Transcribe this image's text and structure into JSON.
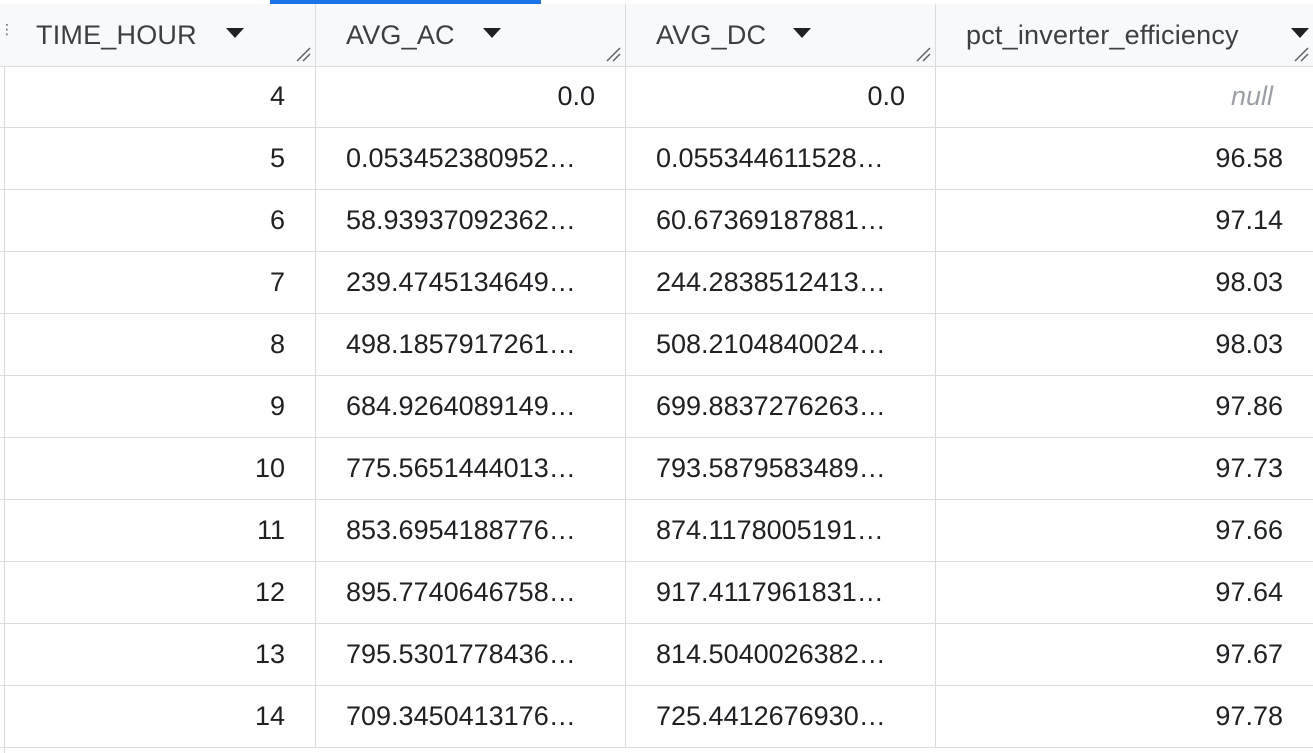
{
  "table": {
    "columns": [
      {
        "label": "TIME_HOUR",
        "sort_icon": "arrow-drop-down-icon"
      },
      {
        "label": "AVG_AC",
        "sort_icon": "arrow-drop-down-icon"
      },
      {
        "label": "AVG_DC",
        "sort_icon": "arrow-drop-down-icon"
      },
      {
        "label": "pct_inverter_efficiency",
        "sort_icon": "arrow-drop-down-icon"
      }
    ],
    "rows": [
      {
        "time_hour": "4",
        "avg_ac": "0.0",
        "avg_dc": "0.0",
        "pct": "null"
      },
      {
        "time_hour": "5",
        "avg_ac": "0.053452380952…",
        "avg_dc": "0.055344611528…",
        "pct": "96.58"
      },
      {
        "time_hour": "6",
        "avg_ac": "58.93937092362…",
        "avg_dc": "60.67369187881…",
        "pct": "97.14"
      },
      {
        "time_hour": "7",
        "avg_ac": "239.4745134649…",
        "avg_dc": "244.2838512413…",
        "pct": "98.03"
      },
      {
        "time_hour": "8",
        "avg_ac": "498.1857917261…",
        "avg_dc": "508.2104840024…",
        "pct": "98.03"
      },
      {
        "time_hour": "9",
        "avg_ac": "684.9264089149…",
        "avg_dc": "699.8837276263…",
        "pct": "97.86"
      },
      {
        "time_hour": "10",
        "avg_ac": "775.5651444013…",
        "avg_dc": "793.5879583489…",
        "pct": "97.73"
      },
      {
        "time_hour": "11",
        "avg_ac": "853.6954188776…",
        "avg_dc": "874.1178005191…",
        "pct": "97.66"
      },
      {
        "time_hour": "12",
        "avg_ac": "895.7740646758…",
        "avg_dc": "917.4117961831…",
        "pct": "97.64"
      },
      {
        "time_hour": "13",
        "avg_ac": "795.5301778436…",
        "avg_dc": "814.5040026382…",
        "pct": "97.67"
      },
      {
        "time_hour": "14",
        "avg_ac": "709.3450413176…",
        "avg_dc": "725.4412676930…",
        "pct": "97.78"
      }
    ]
  },
  "colors": {
    "accent": "#1a73e8",
    "header_bg": "#f8f9fa",
    "border": "#dadce0",
    "null_text": "#9aa0a6"
  }
}
